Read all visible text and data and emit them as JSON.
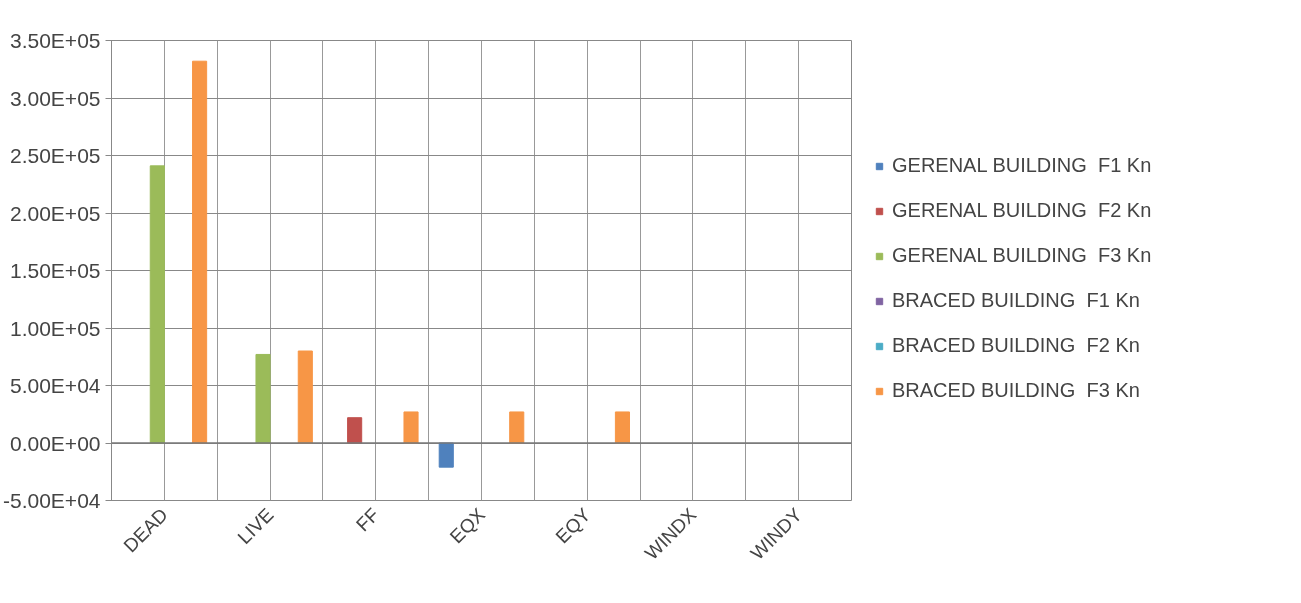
{
  "chart_data": {
    "type": "bar",
    "categories": [
      "DEAD",
      "LIVE",
      "FF",
      "EQX",
      "EQY",
      "WINDX",
      "WINDY"
    ],
    "series": [
      {
        "name": "GERENAL BUILDING  F1 Kn",
        "color": "#4f81bd",
        "values": [
          null,
          null,
          null,
          -21000,
          null,
          null,
          null
        ]
      },
      {
        "name": "GERENAL BUILDING  F2 Kn",
        "color": "#c0504d",
        "values": [
          null,
          null,
          22000,
          null,
          null,
          null,
          null
        ]
      },
      {
        "name": "GERENAL BUILDING  F3 Kn",
        "color": "#9bbb59",
        "values": [
          241000,
          77000,
          null,
          null,
          null,
          null,
          null
        ]
      },
      {
        "name": "BRACED BUILDING  F1 Kn",
        "color": "#8064a2",
        "values": [
          null,
          null,
          null,
          null,
          null,
          null,
          null
        ]
      },
      {
        "name": "BRACED BUILDING  F2 Kn",
        "color": "#4bacc6",
        "values": [
          null,
          null,
          null,
          null,
          null,
          null,
          null
        ]
      },
      {
        "name": "BRACED BUILDING  F3 Kn",
        "color": "#f79646",
        "values": [
          332000,
          80000,
          27000,
          27000,
          27000,
          null,
          null
        ]
      }
    ],
    "ylim": [
      -50000,
      350000
    ],
    "yticks": [
      {
        "value": -50000,
        "label": "-5.00E+04"
      },
      {
        "value": 0,
        "label": "0.00E+00"
      },
      {
        "value": 50000,
        "label": "5.00E+04"
      },
      {
        "value": 100000,
        "label": "1.00E+05"
      },
      {
        "value": 150000,
        "label": "1.50E+05"
      },
      {
        "value": 200000,
        "label": "2.00E+05"
      },
      {
        "value": 250000,
        "label": "2.50E+05"
      },
      {
        "value": 300000,
        "label": "3.00E+05"
      },
      {
        "value": 350000,
        "label": "3.50E+05"
      }
    ],
    "grid": true,
    "legend": "right"
  }
}
